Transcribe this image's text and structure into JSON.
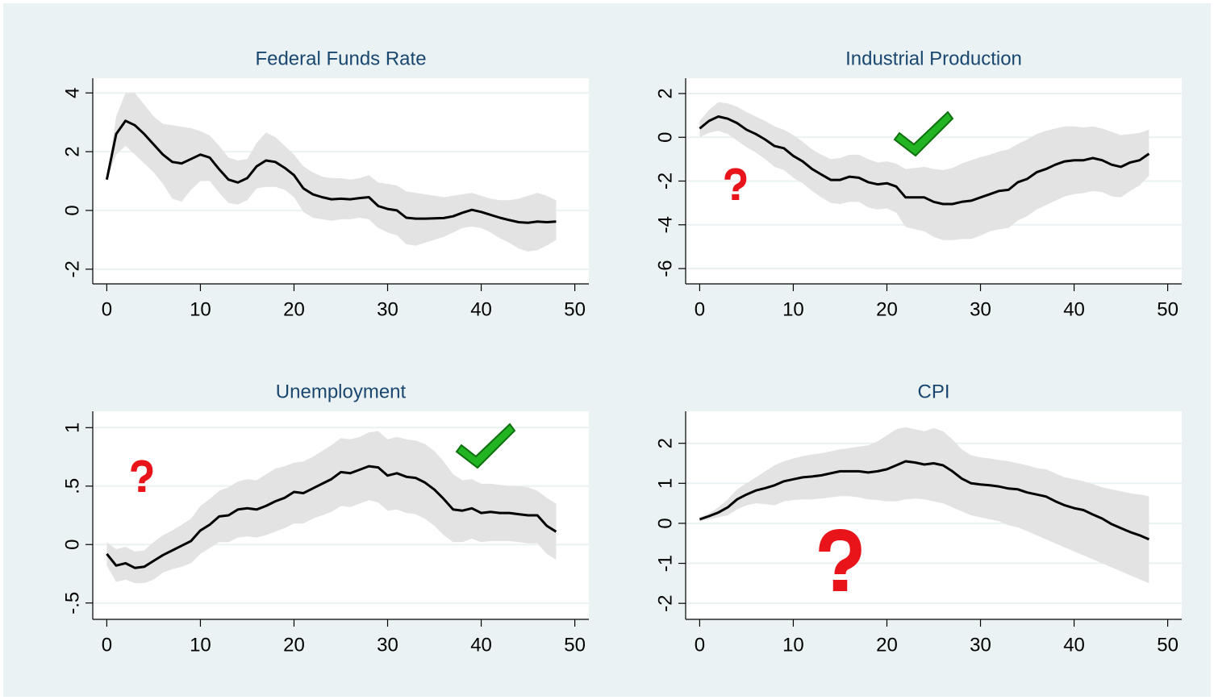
{
  "chart_data": [
    {
      "type": "line",
      "title": "Federal Funds Rate",
      "x": [
        0,
        1,
        2,
        3,
        4,
        5,
        6,
        7,
        8,
        9,
        10,
        11,
        12,
        13,
        14,
        15,
        16,
        17,
        18,
        19,
        20,
        21,
        22,
        23,
        24,
        25,
        26,
        27,
        28,
        29,
        30,
        31,
        32,
        33,
        34,
        35,
        36,
        37,
        38,
        39,
        40,
        41,
        42,
        43,
        44,
        45,
        46,
        47,
        48
      ],
      "series": [
        {
          "color": "#000000",
          "values": [
            1.05,
            2.6,
            3.05,
            2.9,
            2.6,
            2.25,
            1.9,
            1.65,
            1.6,
            1.75,
            1.9,
            1.8,
            1.4,
            1.05,
            0.95,
            1.1,
            1.5,
            1.7,
            1.65,
            1.45,
            1.2,
            0.75,
            0.55,
            0.45,
            0.38,
            0.4,
            0.38,
            0.42,
            0.45,
            0.15,
            0.05,
            0.0,
            -0.25,
            -0.28,
            -0.28,
            -0.27,
            -0.26,
            -0.2,
            -0.08,
            0.02,
            -0.05,
            -0.15,
            -0.25,
            -0.33,
            -0.4,
            -0.42,
            -0.38,
            -0.4,
            -0.38
          ]
        }
      ],
      "band": {
        "color": "#e3e3e3",
        "upper": [
          1.05,
          3.2,
          4.0,
          4.0,
          3.6,
          3.2,
          2.95,
          2.9,
          2.85,
          2.8,
          2.7,
          2.55,
          2.2,
          1.8,
          1.7,
          1.75,
          2.3,
          2.65,
          2.5,
          2.2,
          1.9,
          1.5,
          1.3,
          1.15,
          1.1,
          1.1,
          1.05,
          1.1,
          1.2,
          0.95,
          0.9,
          0.85,
          0.65,
          0.6,
          0.55,
          0.5,
          0.45,
          0.5,
          0.55,
          0.6,
          0.5,
          0.4,
          0.35,
          0.35,
          0.4,
          0.5,
          0.6,
          0.5,
          0.35
        ],
        "lower": [
          1.05,
          1.9,
          2.2,
          1.9,
          1.6,
          1.3,
          0.9,
          0.4,
          0.3,
          0.7,
          1.0,
          1.0,
          0.6,
          0.25,
          0.2,
          0.35,
          0.75,
          0.8,
          0.8,
          0.7,
          0.45,
          -0.05,
          -0.25,
          -0.3,
          -0.35,
          -0.3,
          -0.3,
          -0.25,
          -0.3,
          -0.6,
          -0.75,
          -0.85,
          -1.15,
          -1.2,
          -1.1,
          -1.0,
          -0.9,
          -0.75,
          -0.6,
          -0.55,
          -0.6,
          -0.75,
          -0.95,
          -1.1,
          -1.3,
          -1.4,
          -1.35,
          -1.2,
          -1.0
        ]
      },
      "xlim": [
        -1.5,
        51.5
      ],
      "xticks": [
        0,
        10,
        20,
        30,
        40,
        50
      ],
      "ylim": [
        -2.5,
        4.5
      ],
      "yticks": [
        -2,
        0,
        2,
        4
      ],
      "grid": true
    },
    {
      "type": "line",
      "title": "Industrial Production",
      "x": [
        0,
        1,
        2,
        3,
        4,
        5,
        6,
        7,
        8,
        9,
        10,
        11,
        12,
        13,
        14,
        15,
        16,
        17,
        18,
        19,
        20,
        21,
        22,
        23,
        24,
        25,
        26,
        27,
        28,
        29,
        30,
        31,
        32,
        33,
        34,
        35,
        36,
        37,
        38,
        39,
        40,
        41,
        42,
        43,
        44,
        45,
        46,
        47,
        48
      ],
      "series": [
        {
          "color": "#000000",
          "values": [
            0.4,
            0.75,
            0.95,
            0.85,
            0.65,
            0.35,
            0.15,
            -0.1,
            -0.4,
            -0.5,
            -0.85,
            -1.1,
            -1.45,
            -1.7,
            -1.95,
            -1.95,
            -1.8,
            -1.85,
            -2.05,
            -2.15,
            -2.1,
            -2.25,
            -2.75,
            -2.75,
            -2.75,
            -2.95,
            -3.05,
            -3.05,
            -2.95,
            -2.9,
            -2.75,
            -2.6,
            -2.45,
            -2.4,
            -2.05,
            -1.9,
            -1.6,
            -1.45,
            -1.25,
            -1.1,
            -1.05,
            -1.05,
            -0.95,
            -1.05,
            -1.25,
            -1.35,
            -1.15,
            -1.05,
            -0.75
          ]
        }
      ],
      "band": {
        "color": "#e3e3e3",
        "upper": [
          0.75,
          1.25,
          1.6,
          1.55,
          1.4,
          1.15,
          0.95,
          0.75,
          0.5,
          0.35,
          0.1,
          -0.2,
          -0.55,
          -0.8,
          -1.0,
          -0.95,
          -0.8,
          -0.8,
          -1.0,
          -1.15,
          -1.1,
          -1.2,
          -1.45,
          -1.4,
          -1.35,
          -1.45,
          -1.5,
          -1.4,
          -1.2,
          -1.05,
          -0.9,
          -0.8,
          -0.65,
          -0.55,
          -0.3,
          -0.1,
          0.15,
          0.3,
          0.4,
          0.5,
          0.5,
          0.45,
          0.5,
          0.4,
          0.25,
          0.1,
          0.15,
          0.2,
          0.35
        ],
        "lower": [
          0.0,
          0.2,
          0.3,
          0.15,
          -0.15,
          -0.45,
          -0.7,
          -1.0,
          -1.35,
          -1.5,
          -1.85,
          -2.1,
          -2.45,
          -2.75,
          -3.0,
          -3.05,
          -2.95,
          -2.95,
          -3.2,
          -3.3,
          -3.25,
          -3.45,
          -4.1,
          -4.2,
          -4.3,
          -4.55,
          -4.7,
          -4.7,
          -4.65,
          -4.65,
          -4.5,
          -4.3,
          -4.2,
          -4.15,
          -3.8,
          -3.6,
          -3.3,
          -3.1,
          -2.9,
          -2.7,
          -2.6,
          -2.55,
          -2.45,
          -2.5,
          -2.7,
          -2.75,
          -2.45,
          -2.2,
          -1.75
        ]
      },
      "xlim": [
        -1.5,
        51.5
      ],
      "xticks": [
        0,
        10,
        20,
        30,
        40,
        50
      ],
      "ylim": [
        -6.7,
        2.7
      ],
      "yticks": [
        -6,
        -4,
        -2,
        0,
        2
      ],
      "grid": true
    },
    {
      "type": "line",
      "title": "Unemployment",
      "x": [
        0,
        1,
        2,
        3,
        4,
        5,
        6,
        7,
        8,
        9,
        10,
        11,
        12,
        13,
        14,
        15,
        16,
        17,
        18,
        19,
        20,
        21,
        22,
        23,
        24,
        25,
        26,
        27,
        28,
        29,
        30,
        31,
        32,
        33,
        34,
        35,
        36,
        37,
        38,
        39,
        40,
        41,
        42,
        43,
        44,
        45,
        46,
        47,
        48
      ],
      "series": [
        {
          "color": "#000000",
          "values": [
            -0.08,
            -0.18,
            -0.16,
            -0.2,
            -0.19,
            -0.14,
            -0.09,
            -0.05,
            -0.01,
            0.03,
            0.12,
            0.17,
            0.24,
            0.25,
            0.3,
            0.31,
            0.3,
            0.33,
            0.37,
            0.4,
            0.45,
            0.44,
            0.48,
            0.52,
            0.56,
            0.62,
            0.61,
            0.64,
            0.67,
            0.66,
            0.59,
            0.61,
            0.58,
            0.57,
            0.53,
            0.47,
            0.39,
            0.3,
            0.29,
            0.31,
            0.27,
            0.28,
            0.27,
            0.27,
            0.26,
            0.25,
            0.25,
            0.16,
            0.11
          ]
        }
      ],
      "band": {
        "color": "#e3e3e3",
        "upper": [
          0.02,
          -0.04,
          -0.02,
          -0.06,
          -0.05,
          0.02,
          0.08,
          0.12,
          0.17,
          0.22,
          0.33,
          0.39,
          0.46,
          0.49,
          0.54,
          0.56,
          0.55,
          0.6,
          0.65,
          0.67,
          0.7,
          0.71,
          0.75,
          0.8,
          0.85,
          0.91,
          0.9,
          0.92,
          0.96,
          0.97,
          0.9,
          0.92,
          0.9,
          0.89,
          0.86,
          0.8,
          0.71,
          0.6,
          0.55,
          0.56,
          0.52,
          0.52,
          0.51,
          0.5,
          0.5,
          0.49,
          0.46,
          0.4,
          0.35
        ],
        "lower": [
          -0.18,
          -0.32,
          -0.3,
          -0.33,
          -0.33,
          -0.3,
          -0.24,
          -0.21,
          -0.19,
          -0.16,
          -0.08,
          -0.03,
          0.02,
          0.02,
          0.06,
          0.07,
          0.06,
          0.08,
          0.11,
          0.14,
          0.18,
          0.18,
          0.22,
          0.25,
          0.28,
          0.33,
          0.32,
          0.35,
          0.38,
          0.36,
          0.29,
          0.3,
          0.27,
          0.26,
          0.22,
          0.16,
          0.08,
          0.02,
          0.02,
          0.05,
          0.02,
          0.03,
          0.03,
          0.03,
          0.02,
          0.01,
          0.01,
          -0.08,
          -0.13
        ]
      },
      "xlim": [
        -1.5,
        51.5
      ],
      "xticks": [
        0,
        10,
        20,
        30,
        40,
        50
      ],
      "ylim": [
        -0.64,
        1.14
      ],
      "yticks": [
        {
          "value": -0.5,
          "label": "-.5"
        },
        0,
        {
          "value": 0.5,
          "label": ".5"
        },
        1
      ],
      "grid": true
    },
    {
      "type": "line",
      "title": "CPI",
      "x": [
        0,
        1,
        2,
        3,
        4,
        5,
        6,
        7,
        8,
        9,
        10,
        11,
        12,
        13,
        14,
        15,
        16,
        17,
        18,
        19,
        20,
        21,
        22,
        23,
        24,
        25,
        26,
        27,
        28,
        29,
        30,
        31,
        32,
        33,
        34,
        35,
        36,
        37,
        38,
        39,
        40,
        41,
        42,
        43,
        44,
        45,
        46,
        47,
        48
      ],
      "series": [
        {
          "color": "#000000",
          "values": [
            0.1,
            0.18,
            0.27,
            0.4,
            0.6,
            0.72,
            0.82,
            0.88,
            0.95,
            1.05,
            1.1,
            1.15,
            1.17,
            1.2,
            1.25,
            1.3,
            1.3,
            1.3,
            1.27,
            1.3,
            1.35,
            1.45,
            1.55,
            1.52,
            1.47,
            1.5,
            1.45,
            1.3,
            1.12,
            1.0,
            0.97,
            0.95,
            0.92,
            0.87,
            0.85,
            0.77,
            0.72,
            0.67,
            0.55,
            0.45,
            0.38,
            0.33,
            0.22,
            0.12,
            -0.02,
            -0.12,
            -0.22,
            -0.3,
            -0.4
          ]
        }
      ],
      "band": {
        "color": "#e3e3e3",
        "upper": [
          0.15,
          0.25,
          0.4,
          0.6,
          0.85,
          1.0,
          1.15,
          1.3,
          1.45,
          1.55,
          1.62,
          1.68,
          1.72,
          1.75,
          1.8,
          1.85,
          1.88,
          1.92,
          1.95,
          2.05,
          2.2,
          2.35,
          2.4,
          2.35,
          2.3,
          2.38,
          2.3,
          2.1,
          1.85,
          1.7,
          1.65,
          1.62,
          1.58,
          1.55,
          1.5,
          1.45,
          1.38,
          1.35,
          1.25,
          1.15,
          1.1,
          1.05,
          0.98,
          0.9,
          0.85,
          0.8,
          0.75,
          0.72,
          0.68
        ],
        "lower": [
          0.05,
          0.1,
          0.15,
          0.2,
          0.35,
          0.45,
          0.5,
          0.48,
          0.45,
          0.55,
          0.58,
          0.6,
          0.6,
          0.62,
          0.65,
          0.68,
          0.68,
          0.65,
          0.6,
          0.58,
          0.55,
          0.55,
          0.6,
          0.62,
          0.6,
          0.55,
          0.5,
          0.4,
          0.3,
          0.2,
          0.15,
          0.1,
          0.05,
          -0.05,
          -0.1,
          -0.2,
          -0.3,
          -0.4,
          -0.5,
          -0.6,
          -0.7,
          -0.8,
          -0.9,
          -1.0,
          -1.1,
          -1.2,
          -1.3,
          -1.4,
          -1.5
        ]
      },
      "xlim": [
        -1.5,
        51.5
      ],
      "xticks": [
        0,
        10,
        20,
        30,
        40,
        50
      ],
      "ylim": [
        -2.4,
        2.8
      ],
      "yticks": [
        -2,
        -1,
        0,
        1,
        2
      ],
      "grid": true
    }
  ]
}
